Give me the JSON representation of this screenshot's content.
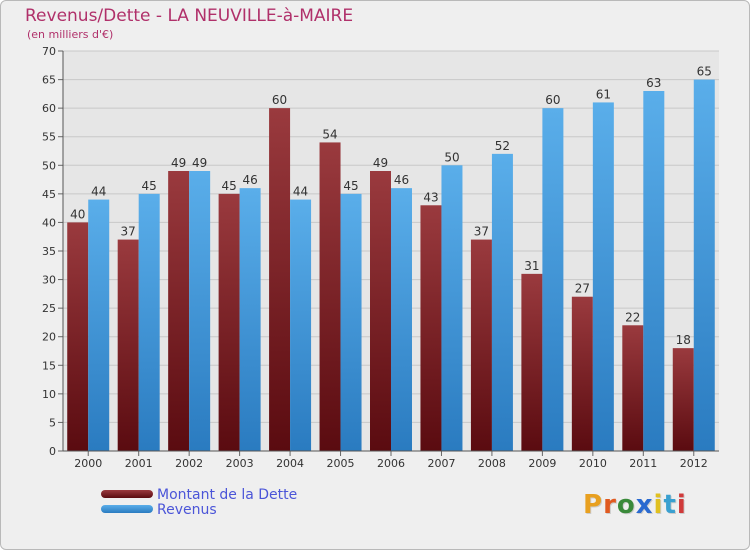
{
  "header": {
    "title": "Revenus/Dette - LA NEUVILLE-à-MAIRE",
    "subtitle": "(en milliers d'€)"
  },
  "colors": {
    "title": "#b0306a",
    "dette_dark": "#5a0b10",
    "dette_light": "#9a3a3e",
    "revenus_dark": "#2a7bc0",
    "revenus_light": "#5aaeea",
    "plot_bg": "#e6e6e6",
    "grid": "#c8c8c8",
    "legend_text": "#4b55d8"
  },
  "legend": {
    "dette_label": "Montant de la Dette",
    "revenus_label": "Revenus"
  },
  "logo": {
    "text": "Proxiti",
    "letter_colors": [
      "#e8a020",
      "#e05a20",
      "#3a8a3a",
      "#2a6ad0",
      "#e0c020",
      "#3aa0d0",
      "#d03a3a"
    ]
  },
  "chart_data": {
    "type": "bar",
    "title": "Revenus/Dette - LA NEUVILLE-à-MAIRE",
    "subtitle": "(en milliers d'€)",
    "categories": [
      "2000",
      "2001",
      "2002",
      "2003",
      "2004",
      "2005",
      "2006",
      "2007",
      "2008",
      "2009",
      "2010",
      "2011",
      "2012"
    ],
    "series": [
      {
        "name": "Montant de la Dette",
        "values": [
          40,
          37,
          49,
          45,
          60,
          54,
          49,
          43,
          37,
          31,
          27,
          22,
          18
        ]
      },
      {
        "name": "Revenus",
        "values": [
          44,
          45,
          49,
          46,
          44,
          45,
          46,
          50,
          52,
          60,
          61,
          63,
          65
        ]
      }
    ],
    "ylim": [
      0,
      70
    ],
    "yticks": [
      0,
      5,
      10,
      15,
      20,
      25,
      30,
      35,
      40,
      45,
      50,
      55,
      60,
      65,
      70
    ],
    "grid": true,
    "legend_position": "bottom-left"
  }
}
